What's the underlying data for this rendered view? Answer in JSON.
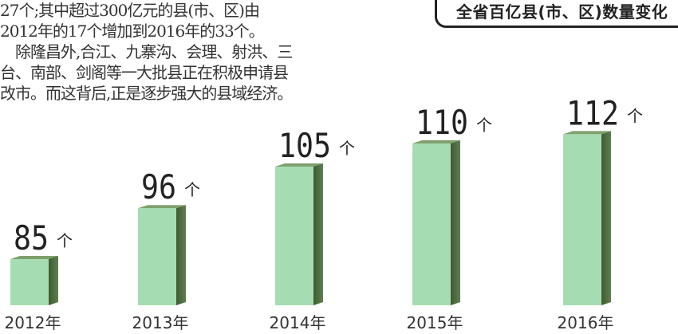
{
  "article": {
    "lines": [
      "27个;其中超过300亿元的县(市、区)由",
      "2012年的17个增加到2016年的33个。",
      "　除隆昌外,合江、九寨沟、会理、射洪、三",
      "台、南部、剑阁等一大批县正在积极申请县",
      "改市。而这背后,正是逐步强大的县域经济。"
    ]
  },
  "chart_data": {
    "type": "bar",
    "title": "全省百亿县(市、区)数量变化",
    "categories": [
      "2012年",
      "2013年",
      "2014年",
      "2015年",
      "2016年"
    ],
    "values": [
      85,
      96,
      105,
      110,
      112
    ],
    "unit": "个",
    "xlabel": "",
    "ylabel": "",
    "grid": false,
    "colors": {
      "front": "#a6dcb2",
      "side": "#5f7f4f",
      "top": "#7fa06d"
    }
  }
}
